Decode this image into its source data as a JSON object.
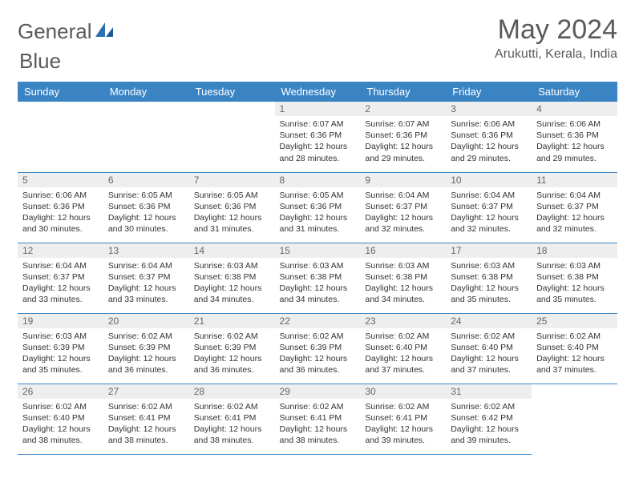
{
  "logo": {
    "text1": "General",
    "text2": "Blue"
  },
  "title": "May 2024",
  "location": "Arukutti, Kerala, India",
  "weekdays": [
    "Sunday",
    "Monday",
    "Tuesday",
    "Wednesday",
    "Thursday",
    "Friday",
    "Saturday"
  ],
  "colors": {
    "header_bg": "#3b84c4",
    "header_fg": "#ffffff",
    "daynum_bg": "#eeeeee",
    "border": "#3b84c4",
    "text": "#5a5a5a",
    "logo_accent": "#2b6fb0"
  },
  "weeks": [
    [
      {
        "n": "",
        "sr": "",
        "ss": "",
        "dl": ""
      },
      {
        "n": "",
        "sr": "",
        "ss": "",
        "dl": ""
      },
      {
        "n": "",
        "sr": "",
        "ss": "",
        "dl": ""
      },
      {
        "n": "1",
        "sr": "6:07 AM",
        "ss": "6:36 PM",
        "dl": "12 hours and 28 minutes."
      },
      {
        "n": "2",
        "sr": "6:07 AM",
        "ss": "6:36 PM",
        "dl": "12 hours and 29 minutes."
      },
      {
        "n": "3",
        "sr": "6:06 AM",
        "ss": "6:36 PM",
        "dl": "12 hours and 29 minutes."
      },
      {
        "n": "4",
        "sr": "6:06 AM",
        "ss": "6:36 PM",
        "dl": "12 hours and 29 minutes."
      }
    ],
    [
      {
        "n": "5",
        "sr": "6:06 AM",
        "ss": "6:36 PM",
        "dl": "12 hours and 30 minutes."
      },
      {
        "n": "6",
        "sr": "6:05 AM",
        "ss": "6:36 PM",
        "dl": "12 hours and 30 minutes."
      },
      {
        "n": "7",
        "sr": "6:05 AM",
        "ss": "6:36 PM",
        "dl": "12 hours and 31 minutes."
      },
      {
        "n": "8",
        "sr": "6:05 AM",
        "ss": "6:36 PM",
        "dl": "12 hours and 31 minutes."
      },
      {
        "n": "9",
        "sr": "6:04 AM",
        "ss": "6:37 PM",
        "dl": "12 hours and 32 minutes."
      },
      {
        "n": "10",
        "sr": "6:04 AM",
        "ss": "6:37 PM",
        "dl": "12 hours and 32 minutes."
      },
      {
        "n": "11",
        "sr": "6:04 AM",
        "ss": "6:37 PM",
        "dl": "12 hours and 32 minutes."
      }
    ],
    [
      {
        "n": "12",
        "sr": "6:04 AM",
        "ss": "6:37 PM",
        "dl": "12 hours and 33 minutes."
      },
      {
        "n": "13",
        "sr": "6:04 AM",
        "ss": "6:37 PM",
        "dl": "12 hours and 33 minutes."
      },
      {
        "n": "14",
        "sr": "6:03 AM",
        "ss": "6:38 PM",
        "dl": "12 hours and 34 minutes."
      },
      {
        "n": "15",
        "sr": "6:03 AM",
        "ss": "6:38 PM",
        "dl": "12 hours and 34 minutes."
      },
      {
        "n": "16",
        "sr": "6:03 AM",
        "ss": "6:38 PM",
        "dl": "12 hours and 34 minutes."
      },
      {
        "n": "17",
        "sr": "6:03 AM",
        "ss": "6:38 PM",
        "dl": "12 hours and 35 minutes."
      },
      {
        "n": "18",
        "sr": "6:03 AM",
        "ss": "6:38 PM",
        "dl": "12 hours and 35 minutes."
      }
    ],
    [
      {
        "n": "19",
        "sr": "6:03 AM",
        "ss": "6:39 PM",
        "dl": "12 hours and 35 minutes."
      },
      {
        "n": "20",
        "sr": "6:02 AM",
        "ss": "6:39 PM",
        "dl": "12 hours and 36 minutes."
      },
      {
        "n": "21",
        "sr": "6:02 AM",
        "ss": "6:39 PM",
        "dl": "12 hours and 36 minutes."
      },
      {
        "n": "22",
        "sr": "6:02 AM",
        "ss": "6:39 PM",
        "dl": "12 hours and 36 minutes."
      },
      {
        "n": "23",
        "sr": "6:02 AM",
        "ss": "6:40 PM",
        "dl": "12 hours and 37 minutes."
      },
      {
        "n": "24",
        "sr": "6:02 AM",
        "ss": "6:40 PM",
        "dl": "12 hours and 37 minutes."
      },
      {
        "n": "25",
        "sr": "6:02 AM",
        "ss": "6:40 PM",
        "dl": "12 hours and 37 minutes."
      }
    ],
    [
      {
        "n": "26",
        "sr": "6:02 AM",
        "ss": "6:40 PM",
        "dl": "12 hours and 38 minutes."
      },
      {
        "n": "27",
        "sr": "6:02 AM",
        "ss": "6:41 PM",
        "dl": "12 hours and 38 minutes."
      },
      {
        "n": "28",
        "sr": "6:02 AM",
        "ss": "6:41 PM",
        "dl": "12 hours and 38 minutes."
      },
      {
        "n": "29",
        "sr": "6:02 AM",
        "ss": "6:41 PM",
        "dl": "12 hours and 38 minutes."
      },
      {
        "n": "30",
        "sr": "6:02 AM",
        "ss": "6:41 PM",
        "dl": "12 hours and 39 minutes."
      },
      {
        "n": "31",
        "sr": "6:02 AM",
        "ss": "6:42 PM",
        "dl": "12 hours and 39 minutes."
      },
      {
        "n": "",
        "sr": "",
        "ss": "",
        "dl": ""
      }
    ]
  ],
  "labels": {
    "sunrise": "Sunrise:",
    "sunset": "Sunset:",
    "daylight": "Daylight:"
  }
}
